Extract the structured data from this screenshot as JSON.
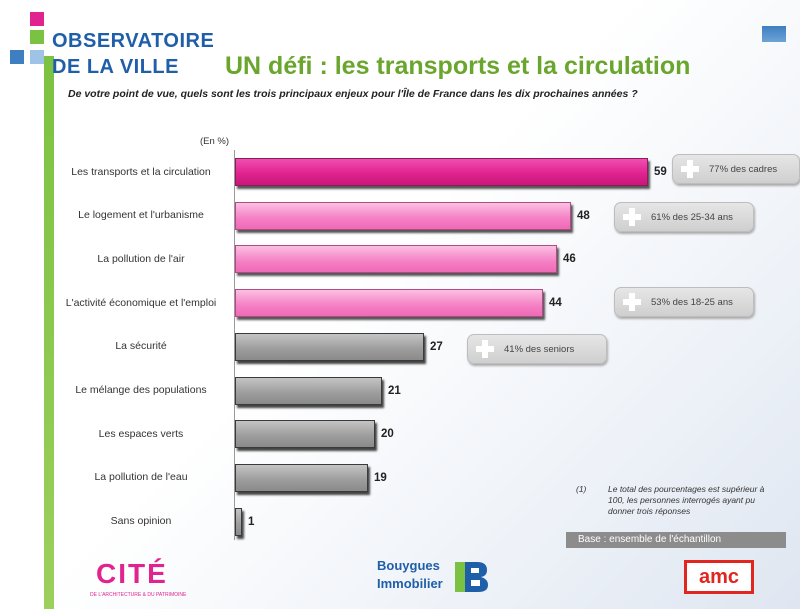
{
  "header": {
    "logo_line1": "OBSERVATOIRE",
    "logo_line2": "DE LA VILLE",
    "title": "UN défi : les transports et la circulation",
    "question": "De votre point de vue, quels sont les trois principaux enjeux pour l'Île de France dans les dix prochaines années ?"
  },
  "colors": {
    "brand_blue": "#1f5ea8",
    "brand_green": "#6aa52d",
    "top_pink": "#e0238f",
    "light_pink": "#f57fc4",
    "grey_bar": "#9e9e9e"
  },
  "chart_data": {
    "type": "bar",
    "orientation": "horizontal",
    "unit": "(En %)",
    "categories": [
      "Les transports et la circulation",
      "Le logement et l'urbanisme",
      "La pollution de l'air",
      "L'activité économique et l'emploi",
      "La sécurité",
      "Le mélange des populations",
      "Les espaces verts",
      "La pollution de l'eau",
      "Sans opinion"
    ],
    "values": [
      59,
      48,
      46,
      44,
      27,
      21,
      20,
      19,
      1
    ],
    "xlim": [
      0,
      59
    ],
    "grid": false,
    "callouts": [
      {
        "category_index": 0,
        "text": "77% des cadres"
      },
      {
        "category_index": 1,
        "text": "61% des 25-34 ans"
      },
      {
        "category_index": 3,
        "text": "53% des 18-25 ans"
      },
      {
        "category_index": 4,
        "text": "41% des seniors"
      }
    ]
  },
  "footnote": {
    "mark": "(1)",
    "text": "Le total des pourcentages est supérieur à 100, les personnes interrogés ayant pu donner trois réponses"
  },
  "base": "Base : ensemble de l'échantillon",
  "footer": {
    "cite_logo": "CITÉ",
    "cite_sub": "DE L'ARCHITECTURE & DU PATRIMOINE",
    "bouygues_line1": "Bouygues",
    "bouygues_line2": "Immobilier",
    "amc": "amc"
  }
}
